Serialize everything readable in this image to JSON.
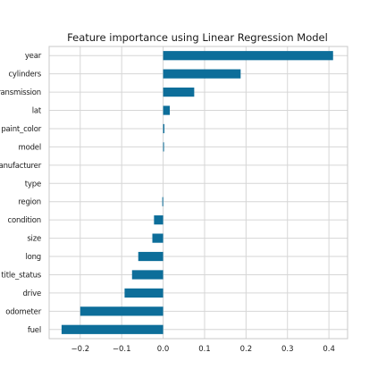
{
  "chart_data": {
    "type": "bar",
    "orientation": "horizontal",
    "title": "Feature importance using Linear Regression Model",
    "xlabel": "",
    "ylabel": "",
    "categories": [
      "year",
      "cylinders",
      "transmission",
      "lat",
      "paint_color",
      "model",
      "manufacturer",
      "type",
      "region",
      "condition",
      "size",
      "long",
      "title_status",
      "drive",
      "odometer",
      "fuel"
    ],
    "values": [
      0.41,
      0.187,
      0.075,
      0.016,
      0.003,
      0.001,
      0.0,
      0.0,
      -0.002,
      -0.022,
      -0.026,
      -0.06,
      -0.075,
      -0.093,
      -0.2,
      -0.245
    ],
    "xlim": [
      -0.275,
      0.445
    ],
    "xticks": [
      -0.2,
      -0.1,
      0.0,
      0.1,
      0.2,
      0.3,
      0.4
    ],
    "xtick_labels": [
      "−0.2",
      "−0.1",
      "0.0",
      "0.1",
      "0.2",
      "0.3",
      "0.4"
    ],
    "grid": true,
    "legend": "none",
    "bar_color": "#0d6e9a",
    "grid_color": "#d6d6d6",
    "frame_color": "#c8c8c8"
  }
}
